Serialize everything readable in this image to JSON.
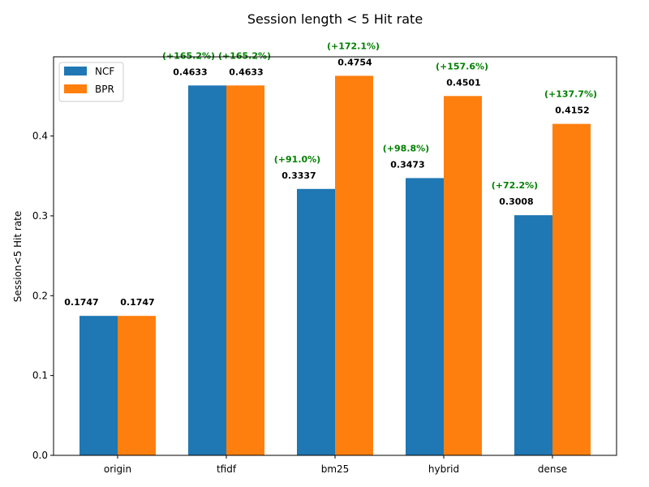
{
  "chart_data": {
    "type": "bar",
    "title": "Session length < 5 Hit rate",
    "xlabel": "",
    "ylabel": "Session<5 Hit rate",
    "categories": [
      "origin",
      "tfidf",
      "bm25",
      "hybrid",
      "dense"
    ],
    "ylim": [
      0,
      0.4992
    ],
    "yticks": [
      "0.0",
      "0.1",
      "0.2",
      "0.3",
      "0.4"
    ],
    "grid": false,
    "legend_position": "top-left",
    "series": [
      {
        "name": "NCF",
        "color": "#1f77b4",
        "values": [
          0.1747,
          0.4633,
          0.3337,
          0.3473,
          0.3008
        ],
        "value_labels": [
          "0.1747",
          "0.4633",
          "0.3337",
          "0.3473",
          "0.3008"
        ],
        "change_labels": [
          "",
          "(+165.2%)",
          "(+91.0%)",
          "(+98.8%)",
          "(+72.2%)"
        ]
      },
      {
        "name": "BPR",
        "color": "#ff7f0e",
        "values": [
          0.1747,
          0.4633,
          0.4754,
          0.4501,
          0.4152
        ],
        "value_labels": [
          "0.1747",
          "0.4633",
          "0.4754",
          "0.4501",
          "0.4152"
        ],
        "change_labels": [
          "",
          "(+165.2%)",
          "(+172.1%)",
          "(+157.6%)",
          "(+137.7%)"
        ]
      }
    ],
    "annotation_color": "#008000"
  }
}
